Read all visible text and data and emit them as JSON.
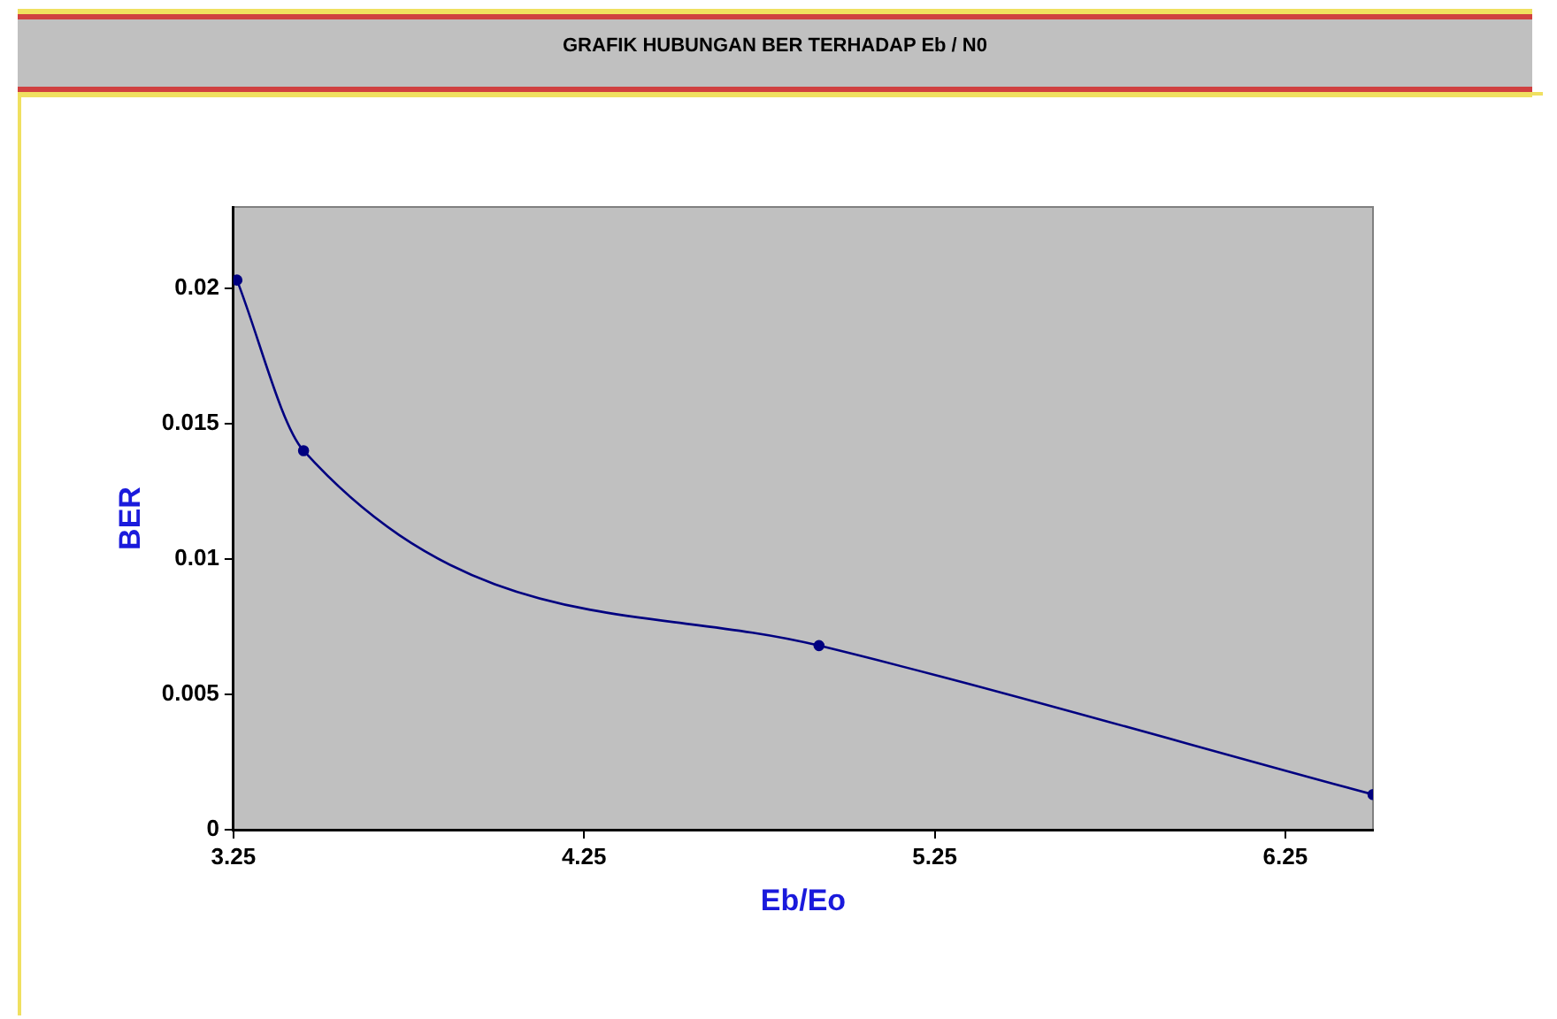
{
  "chart_data": {
    "type": "line",
    "title": "GRAFIK HUBUNGAN BER TERHADAP Eb / N0",
    "xlabel": "Eb/Eo",
    "ylabel": "BER",
    "x": [
      3.26,
      3.45,
      4.92,
      6.5
    ],
    "series": [
      {
        "color": "#000080",
        "values": [
          0.0203,
          0.014,
          0.0068,
          0.0013
        ]
      }
    ],
    "xlim": [
      3.25,
      6.5
    ],
    "xticks": [
      3.25,
      4.25,
      5.25,
      6.25
    ],
    "ylim": [
      0,
      0.023
    ],
    "yticks": [
      0,
      0.005,
      0.01,
      0.015,
      0.02
    ],
    "grid": false,
    "legend": false,
    "marker": "circle",
    "line_style": "solid"
  }
}
